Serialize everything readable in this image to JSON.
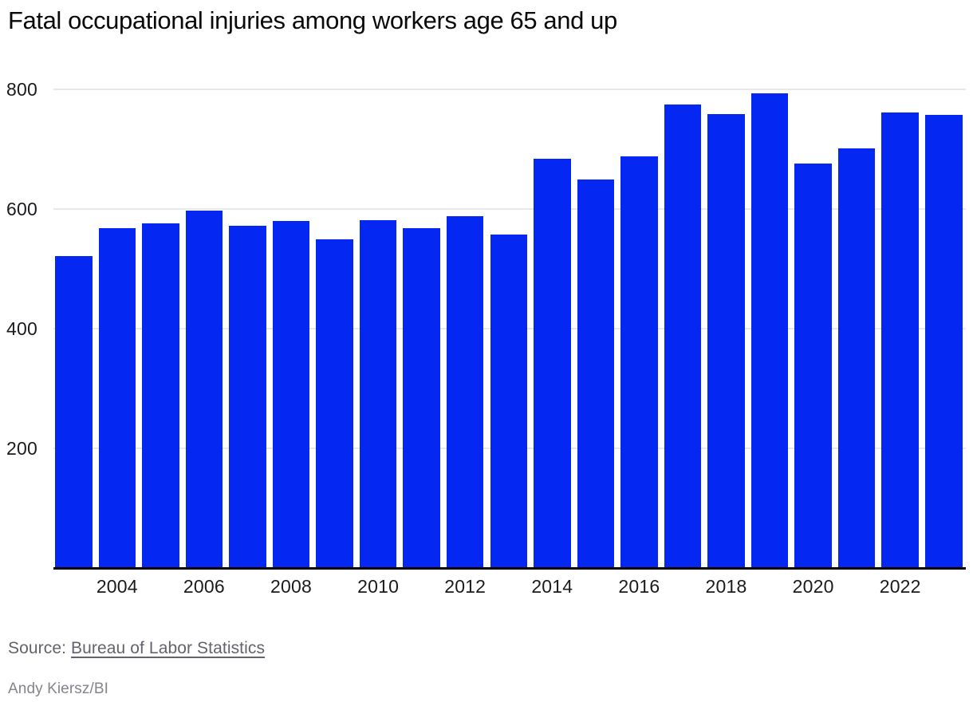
{
  "chart_data": {
    "type": "bar",
    "title": "Fatal occupational injuries among workers age 65 and up",
    "xlabel": "",
    "ylabel": "",
    "x": [
      2003,
      2004,
      2005,
      2006,
      2007,
      2008,
      2009,
      2010,
      2011,
      2012,
      2013,
      2014,
      2015,
      2016,
      2017,
      2018,
      2019,
      2020,
      2021,
      2022,
      2023
    ],
    "values": [
      522,
      568,
      576,
      598,
      572,
      580,
      550,
      581,
      568,
      588,
      557,
      684,
      650,
      688,
      775,
      759,
      794,
      676,
      702,
      762,
      757
    ],
    "ylim": [
      0,
      827
    ],
    "yticks": [
      200,
      400,
      600,
      800
    ],
    "xticks": [
      2004,
      2006,
      2008,
      2010,
      2012,
      2014,
      2016,
      2018,
      2020,
      2022
    ],
    "grid": "horizontal",
    "legend_position": "none",
    "bar_color": "#0527f2",
    "gridline_color": "#e9e9eb",
    "axis_line_color": "#000000"
  },
  "footer": {
    "source_prefix": "Source: ",
    "source_link_text": "Bureau of Labor Statistics",
    "credit": "Andy Kiersz/BI"
  }
}
